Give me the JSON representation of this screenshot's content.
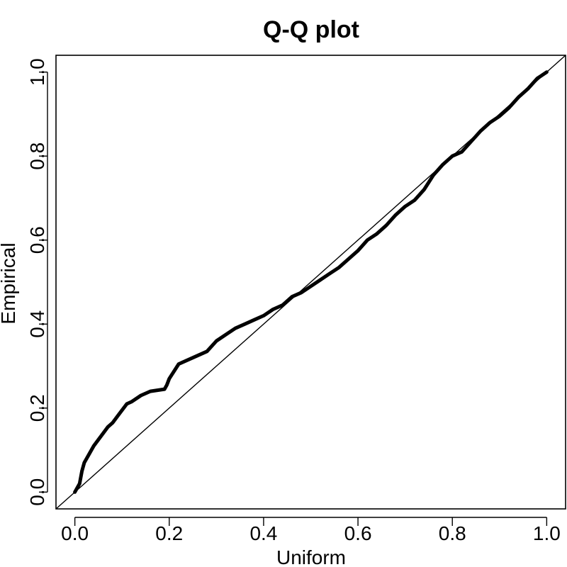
{
  "chart_data": {
    "type": "line",
    "title": "Q-Q plot",
    "xlabel": "Uniform",
    "ylabel": "Empirical",
    "xlim": [
      -0.04,
      1.04
    ],
    "ylim": [
      -0.04,
      1.04
    ],
    "x_ticks": [
      0.0,
      0.2,
      0.4,
      0.6,
      0.8,
      1.0
    ],
    "x_tick_labels": [
      "0.0",
      "0.2",
      "0.4",
      "0.6",
      "0.8",
      "1.0"
    ],
    "y_ticks": [
      0.0,
      0.2,
      0.4,
      0.6,
      0.8,
      1.0
    ],
    "y_tick_labels": [
      "0.0",
      "0.2",
      "0.4",
      "0.6",
      "0.8",
      "1.0"
    ],
    "grid": false,
    "reference_line": {
      "x": [
        -0.04,
        1.04
      ],
      "y": [
        -0.04,
        1.04
      ]
    },
    "series": [
      {
        "x": [
          0.0,
          0.01,
          0.015,
          0.02,
          0.03,
          0.04,
          0.05,
          0.06,
          0.07,
          0.08,
          0.09,
          0.1,
          0.11,
          0.12,
          0.14,
          0.16,
          0.19,
          0.195,
          0.2,
          0.22,
          0.25,
          0.28,
          0.3,
          0.32,
          0.34,
          0.36,
          0.38,
          0.4,
          0.42,
          0.44,
          0.46,
          0.48,
          0.5,
          0.52,
          0.54,
          0.56,
          0.58,
          0.6,
          0.62,
          0.64,
          0.66,
          0.68,
          0.7,
          0.72,
          0.74,
          0.76,
          0.78,
          0.8,
          0.82,
          0.84,
          0.86,
          0.88,
          0.9,
          0.92,
          0.94,
          0.96,
          0.98,
          1.0
        ],
        "y": [
          0.0,
          0.02,
          0.05,
          0.07,
          0.09,
          0.11,
          0.125,
          0.14,
          0.155,
          0.165,
          0.18,
          0.195,
          0.21,
          0.215,
          0.23,
          0.24,
          0.245,
          0.255,
          0.27,
          0.305,
          0.32,
          0.335,
          0.36,
          0.375,
          0.39,
          0.4,
          0.41,
          0.42,
          0.435,
          0.445,
          0.465,
          0.475,
          0.49,
          0.505,
          0.52,
          0.535,
          0.555,
          0.575,
          0.6,
          0.615,
          0.635,
          0.66,
          0.68,
          0.695,
          0.72,
          0.755,
          0.78,
          0.8,
          0.81,
          0.835,
          0.86,
          0.88,
          0.895,
          0.915,
          0.94,
          0.96,
          0.985,
          1.0
        ]
      }
    ]
  }
}
